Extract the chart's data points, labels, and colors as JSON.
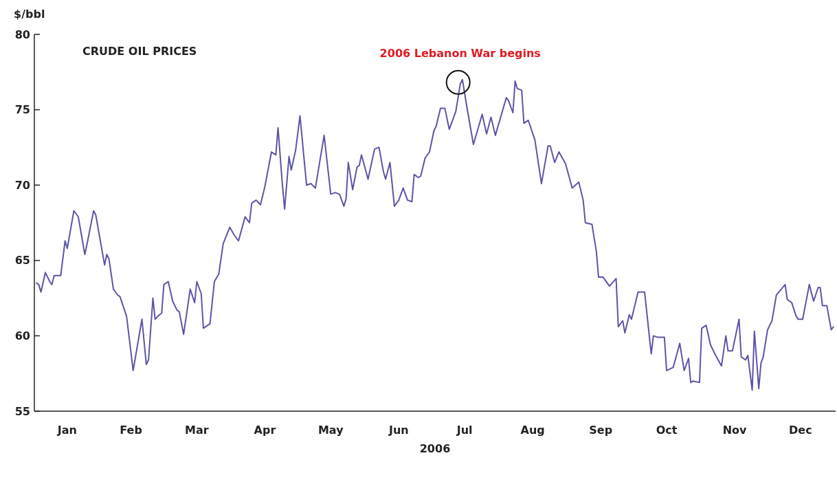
{
  "chart_data": {
    "type": "line",
    "title": "CRUDE OIL PRICES",
    "ylabel": "$/bbl",
    "xlabel": "2006",
    "annotations": [
      {
        "text": "2006 Lebanon War begins",
        "x": "2006-07-14",
        "y": 77.0
      }
    ],
    "xlim": [
      "2006-01-01",
      "2007-01-01"
    ],
    "xticks": [
      {
        "value": "2006-01-16",
        "label": "Jan"
      },
      {
        "value": "2006-02-14",
        "label": "Feb"
      },
      {
        "value": "2006-03-16",
        "label": "Mar"
      },
      {
        "value": "2006-04-16",
        "label": "Apr"
      },
      {
        "value": "2006-05-16",
        "label": "May"
      },
      {
        "value": "2006-06-16",
        "label": "Jun"
      },
      {
        "value": "2006-07-16",
        "label": "Jul"
      },
      {
        "value": "2006-08-16",
        "label": "Aug"
      },
      {
        "value": "2006-09-16",
        "label": "Sep"
      },
      {
        "value": "2006-10-16",
        "label": "Oct"
      },
      {
        "value": "2006-11-16",
        "label": "Nov"
      },
      {
        "value": "2006-12-16",
        "label": "Dec"
      }
    ],
    "ylim": [
      55,
      80
    ],
    "yticks": [
      55,
      60,
      65,
      70,
      75,
      80
    ],
    "grid": false,
    "x": [
      "2006-01-02",
      "2006-01-03",
      "2006-01-04",
      "2006-01-06",
      "2006-01-08",
      "2006-01-09",
      "2006-01-10",
      "2006-01-13",
      "2006-01-15",
      "2006-01-16",
      "2006-01-19",
      "2006-01-21",
      "2006-01-24",
      "2006-01-25",
      "2006-01-28",
      "2006-01-29",
      "2006-02-02",
      "2006-02-03",
      "2006-02-04",
      "2006-02-06",
      "2006-02-08",
      "2006-02-09",
      "2006-02-12",
      "2006-02-15",
      "2006-02-19",
      "2006-02-21",
      "2006-02-22",
      "2006-02-24",
      "2006-02-25",
      "2006-02-27",
      "2006-02-28",
      "2006-03-01",
      "2006-03-03",
      "2006-03-05",
      "2006-03-07",
      "2006-03-08",
      "2006-03-10",
      "2006-03-13",
      "2006-03-15",
      "2006-03-16",
      "2006-03-18",
      "2006-03-19",
      "2006-03-22",
      "2006-03-24",
      "2006-03-26",
      "2006-03-28",
      "2006-03-31",
      "2006-04-02",
      "2006-04-04",
      "2006-04-07",
      "2006-04-09",
      "2006-04-10",
      "2006-04-12",
      "2006-04-14",
      "2006-04-16",
      "2006-04-19",
      "2006-04-21",
      "2006-04-22",
      "2006-04-24",
      "2006-04-25",
      "2006-04-27",
      "2006-04-28",
      "2006-04-30",
      "2006-05-02",
      "2006-05-05",
      "2006-05-07",
      "2006-05-09",
      "2006-05-13",
      "2006-05-16",
      "2006-05-18",
      "2006-05-20",
      "2006-05-22",
      "2006-05-23",
      "2006-05-24",
      "2006-05-26",
      "2006-05-28",
      "2006-05-29",
      "2006-05-30",
      "2006-06-02",
      "2006-06-05",
      "2006-06-07",
      "2006-06-09",
      "2006-06-10",
      "2006-06-12",
      "2006-06-14",
      "2006-06-16",
      "2006-06-18",
      "2006-06-20",
      "2006-06-22",
      "2006-06-23",
      "2006-06-25",
      "2006-06-26",
      "2006-06-28",
      "2006-06-30",
      "2006-07-02",
      "2006-07-03",
      "2006-07-05",
      "2006-07-07",
      "2006-07-09",
      "2006-07-12",
      "2006-07-14",
      "2006-07-15",
      "2006-07-17",
      "2006-07-20",
      "2006-07-24",
      "2006-07-26",
      "2006-07-28",
      "2006-07-30",
      "2006-08-04",
      "2006-08-05",
      "2006-08-07",
      "2006-08-08",
      "2006-08-09",
      "2006-08-11",
      "2006-08-12",
      "2006-08-14",
      "2006-08-17",
      "2006-08-20",
      "2006-08-23",
      "2006-08-24",
      "2006-08-26",
      "2006-08-28",
      "2006-08-31",
      "2006-09-03",
      "2006-09-06",
      "2006-09-08",
      "2006-09-09",
      "2006-09-12",
      "2006-09-14",
      "2006-09-15",
      "2006-09-17",
      "2006-09-20",
      "2006-09-23",
      "2006-09-24",
      "2006-09-26",
      "2006-09-27",
      "2006-09-29",
      "2006-09-30",
      "2006-10-03",
      "2006-10-06",
      "2006-10-09",
      "2006-10-10",
      "2006-10-12",
      "2006-10-15",
      "2006-10-16",
      "2006-10-19",
      "2006-10-22",
      "2006-10-24",
      "2006-10-26",
      "2006-10-27",
      "2006-10-28",
      "2006-10-31",
      "2006-11-01",
      "2006-11-03",
      "2006-11-05",
      "2006-11-07",
      "2006-11-10",
      "2006-11-12",
      "2006-11-13",
      "2006-11-15",
      "2006-11-18",
      "2006-11-19",
      "2006-11-21",
      "2006-11-22",
      "2006-11-24",
      "2006-11-25",
      "2006-11-27",
      "2006-11-28",
      "2006-11-29",
      "2006-12-01",
      "2006-12-03",
      "2006-12-05",
      "2006-12-09",
      "2006-12-10",
      "2006-12-12",
      "2006-12-14",
      "2006-12-15",
      "2006-12-17",
      "2006-12-20",
      "2006-12-22",
      "2006-12-24",
      "2006-12-25",
      "2006-12-26",
      "2006-12-28",
      "2006-12-30",
      "2006-12-31"
    ],
    "series": [
      {
        "color": "#5b55a6",
        "values": [
          63.5,
          63.4,
          62.9,
          64.2,
          63.6,
          63.4,
          64.0,
          64.0,
          66.3,
          65.8,
          68.3,
          67.9,
          65.4,
          66.1,
          68.3,
          68.0,
          64.7,
          65.4,
          65.1,
          63.1,
          62.7,
          62.6,
          61.3,
          57.7,
          61.1,
          58.1,
          58.4,
          62.5,
          61.1,
          61.4,
          61.5,
          63.4,
          63.6,
          62.3,
          61.7,
          61.6,
          60.1,
          63.1,
          62.2,
          63.6,
          62.8,
          60.5,
          60.8,
          63.6,
          64.1,
          66.1,
          67.2,
          66.7,
          66.3,
          67.9,
          67.5,
          68.8,
          69.0,
          68.7,
          69.9,
          72.2,
          72.0,
          73.8,
          70.0,
          68.4,
          71.9,
          71.0,
          72.3,
          74.6,
          70.0,
          70.1,
          69.8,
          73.3,
          69.4,
          69.5,
          69.4,
          68.6,
          69.1,
          71.5,
          69.7,
          71.2,
          71.3,
          72.0,
          70.4,
          72.4,
          72.5,
          70.9,
          70.4,
          71.5,
          68.6,
          69.0,
          69.8,
          69.0,
          68.9,
          70.7,
          70.5,
          70.6,
          71.8,
          72.2,
          73.6,
          73.9,
          75.1,
          75.1,
          73.7,
          74.9,
          76.7,
          77.0,
          75.2,
          72.7,
          74.7,
          73.4,
          74.5,
          73.3,
          75.8,
          75.6,
          74.8,
          76.9,
          76.4,
          76.3,
          74.1,
          74.3,
          73.0,
          70.1,
          72.6,
          72.6,
          71.5,
          72.2,
          71.4,
          69.8,
          70.2,
          69.0,
          67.5,
          67.4,
          65.6,
          63.9,
          63.9,
          63.3,
          63.8,
          60.6,
          61.0,
          60.2,
          61.4,
          61.1,
          62.9,
          62.9,
          58.8,
          60.0,
          59.9,
          59.9,
          57.7,
          57.9,
          59.5,
          57.7,
          58.5,
          56.9,
          57.0,
          56.9,
          60.5,
          60.7,
          59.4,
          58.8,
          58.0,
          60.0,
          59.0,
          59.0,
          61.1,
          58.6,
          58.4,
          58.7,
          56.4,
          60.3,
          56.5,
          58.2,
          58.6,
          60.4,
          61.0,
          62.7,
          63.4,
          62.4,
          62.2,
          61.3,
          61.1,
          61.1,
          63.4,
          62.3,
          63.2,
          63.2,
          62.0,
          62.0,
          60.4,
          60.6
        ]
      }
    ]
  }
}
